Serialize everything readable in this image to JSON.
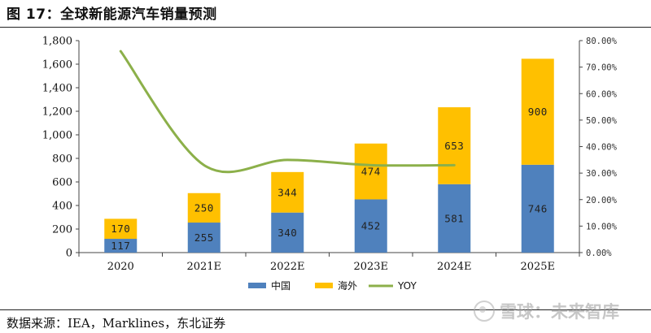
{
  "header": {
    "title": "图 17：全球新能源汽车销量预测"
  },
  "footer": {
    "source": "数据来源：IEA，Marklines，东北证券",
    "watermark": "雪球：未来智库"
  },
  "colors": {
    "china": "#4f81bd",
    "overseas": "#ffc000",
    "yoy": "#8cb04a"
  },
  "icons": {
    "watermark": "snowball-logo-icon"
  },
  "chart_data": {
    "type": "bar",
    "stacked": true,
    "title": "",
    "categories": [
      "2020",
      "2021E",
      "2022E",
      "2023E",
      "2024E",
      "2025E"
    ],
    "series": [
      {
        "name": "中国",
        "type": "bar",
        "axis": "left",
        "values": [
          117,
          255,
          340,
          452,
          581,
          746
        ]
      },
      {
        "name": "海外",
        "type": "bar",
        "axis": "left",
        "values": [
          170,
          250,
          344,
          474,
          653,
          900
        ]
      },
      {
        "name": "YOY",
        "type": "line",
        "axis": "right",
        "values": [
          0.76,
          0.33,
          0.35,
          0.33,
          0.33,
          null
        ]
      }
    ],
    "ylim_left": [
      0,
      1800
    ],
    "yticks_left": [
      "0",
      "200",
      "400",
      "600",
      "800",
      "1,000",
      "1,200",
      "1,400",
      "1,600",
      "1,800"
    ],
    "ylim_right": [
      0,
      0.8
    ],
    "yticks_right": [
      "0.00%",
      "10.00%",
      "20.00%",
      "30.00%",
      "40.00%",
      "50.00%",
      "60.00%",
      "70.00%",
      "80.00%"
    ],
    "legend": [
      "中国",
      "海外",
      "YOY"
    ],
    "legend_position": "bottom",
    "grid": false
  }
}
